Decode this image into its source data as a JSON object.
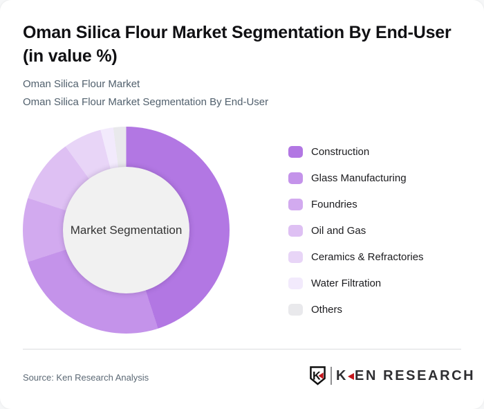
{
  "header": {
    "title": "Oman Silica Flour Market Segmentation By End-User (in value %)",
    "subtitles": [
      "Oman Silica Flour Market",
      "Oman Silica Flour Market Segmentation By End-User"
    ]
  },
  "chart_data": {
    "type": "pie",
    "subtype": "donut",
    "title": "Oman Silica Flour Market Segmentation By End-User (in value %)",
    "center_label": "Market Segmentation",
    "categories": [
      "Construction",
      "Glass Manufacturing",
      "Foundries",
      "Oil and Gas",
      "Ceramics & Refractories",
      "Water Filtration",
      "Others"
    ],
    "values": [
      45,
      25,
      10,
      10,
      6,
      2,
      2
    ],
    "unit": "percent of value",
    "values_are_estimates": true,
    "colors": [
      "#b277e3",
      "#c493ea",
      "#d2aaef",
      "#dec0f3",
      "#e8d5f7",
      "#f2eafc",
      "#e9e9ec"
    ],
    "hole_color": "#f1f1f1",
    "start_angle_deg": 0,
    "direction": "clockwise",
    "legend_position": "right",
    "data_labels_shown": false
  },
  "footer": {
    "source": "Source: Ken Research Analysis",
    "logo": {
      "emblem_letter": "K",
      "text_k": "K",
      "text_rest": "EN RESEARCH",
      "accent_color": "#c4161c"
    }
  }
}
